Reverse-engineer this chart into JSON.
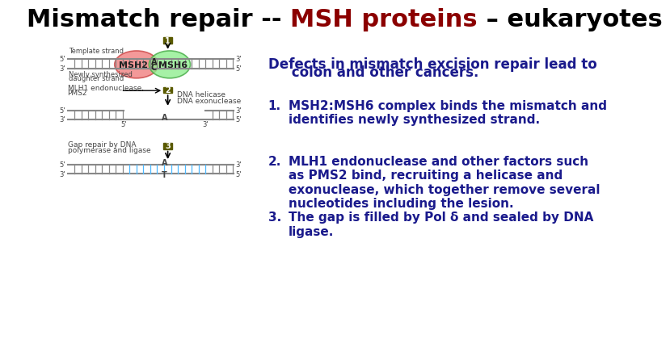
{
  "title_parts_text": [
    "Mismatch repair -- ",
    "MSH proteins",
    " – eukaryotes"
  ],
  "title_parts_colors": [
    "#000000",
    "#8B0000",
    "#000000"
  ],
  "title_fontsize": 22,
  "bg_color": "#ffffff",
  "right_panel": {
    "header_line1": "Defects in mismatch excision repair lead to",
    "header_line2": "     colon and other cancers.",
    "header_color": "#1a1a8c",
    "header_fontsize": 12,
    "items": [
      {
        "num": "1.",
        "text": "MSH2:MSH6 complex binds the mismatch and\nidentifies newly synthesized strand.",
        "color": "#1a1a8c",
        "fontsize": 11
      },
      {
        "num": "2.",
        "text": "MLH1 endonuclease and other factors such\nas PMS2 bind, recruiting a helicase and\nexonuclease, which together remove several\nnucleotides including the lesion.",
        "color": "#1a1a8c",
        "fontsize": 11
      },
      {
        "num": "3.",
        "text": "The gap is filled by Pol δ and sealed by DNA\nligase.",
        "color": "#1a1a8c",
        "fontsize": 11
      }
    ]
  }
}
